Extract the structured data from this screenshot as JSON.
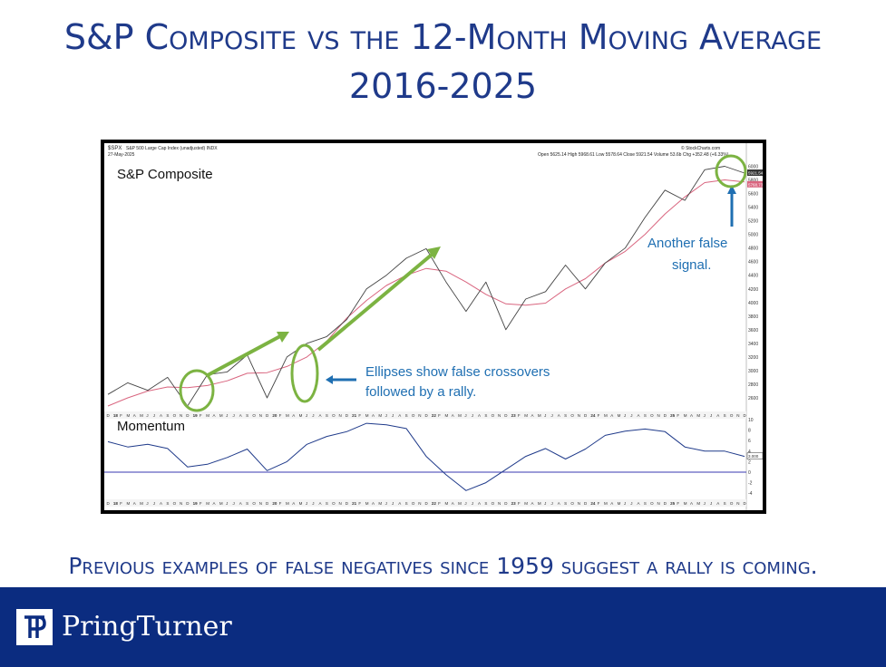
{
  "title_line1": "S&P Composite vs the 12-Month Moving Average",
  "title_line2": "2016-2025",
  "caption": "Previous examples of false negatives since 1959 suggest a rally is coming.",
  "brand": {
    "name": "PringTurner",
    "color": "#0b2c80"
  },
  "colors": {
    "price": "#444444",
    "ma": "#d9657f",
    "momentum": "#1f3a8a",
    "arrow": "#7cb342",
    "callout": "#1f6fb2",
    "zero": "#3a3ab0"
  },
  "chart_header": {
    "symbol": "$SPX",
    "name": "S&P 500 Large Cap Index (unadjusted) INDX",
    "date": "27-May-2025",
    "ohlc": "Open 5625.14  High 5968.61  Low 5578.64  Close 5921.54  Volume 53.6b  Chg +352.48 (+6.33%)",
    "source": "© StockCharts.com",
    "price_label": "5921.54",
    "ma_label": "5768.73",
    "mom_label": "3.000"
  },
  "panel_labels": {
    "price": "S&P Composite",
    "momentum": "Momentum"
  },
  "annotations": {
    "ellipses_line1": "Ellipses show false crossovers",
    "ellipses_line2": "followed by a rally.",
    "false1": "Another false",
    "false2": "signal."
  },
  "axis": {
    "price_ticks": [
      "6000",
      "5800",
      "5600",
      "5400",
      "5200",
      "5000",
      "4800",
      "4600",
      "4400",
      "4200",
      "4000",
      "3800",
      "3600",
      "3400",
      "3200",
      "3000",
      "2800",
      "2600"
    ],
    "mom_ticks": [
      "10",
      "8",
      "6",
      "4",
      "2",
      "0",
      "-2",
      "-4"
    ],
    "month_letters": [
      "F",
      "M",
      "A",
      "M",
      "J",
      "J",
      "A",
      "S",
      "O",
      "N",
      "D"
    ],
    "year_labels": [
      "18",
      "19",
      "20",
      "21",
      "22",
      "23",
      "24",
      "25"
    ]
  },
  "chart_data": [
    {
      "type": "line",
      "title": "S&P Composite",
      "ylim": [
        2400,
        6100
      ],
      "x_months": [
        0,
        3,
        6,
        9,
        12,
        15,
        18,
        21,
        24,
        27,
        30,
        33,
        36,
        39,
        42,
        45,
        48,
        51,
        54,
        57,
        60,
        63,
        66,
        69,
        72,
        75,
        78,
        81,
        84,
        87,
        90,
        93,
        96
      ],
      "series": [
        {
          "name": "S&P Composite",
          "values": [
            2650,
            2820,
            2710,
            2900,
            2480,
            2940,
            2980,
            3230,
            2600,
            3200,
            3400,
            3500,
            3750,
            4200,
            4400,
            4650,
            4790,
            4300,
            3870,
            4300,
            3600,
            4050,
            4160,
            4550,
            4200,
            4580,
            4800,
            5250,
            5650,
            5500,
            5950,
            6000,
            5900
          ]
        },
        {
          "name": "12-Month Moving Average",
          "values": [
            2480,
            2600,
            2700,
            2760,
            2750,
            2780,
            2850,
            2960,
            2970,
            3060,
            3200,
            3430,
            3770,
            4030,
            4250,
            4400,
            4500,
            4460,
            4300,
            4120,
            3980,
            3960,
            3990,
            4200,
            4350,
            4580,
            4750,
            5000,
            5300,
            5550,
            5760,
            5800,
            5770
          ]
        }
      ],
      "annotations": [
        "Ellipses show false crossovers followed by a rally.",
        "Another false signal."
      ]
    },
    {
      "type": "line",
      "title": "Momentum",
      "ylim": [
        -5,
        10
      ],
      "x_months": [
        0,
        3,
        6,
        9,
        12,
        15,
        18,
        21,
        24,
        27,
        30,
        33,
        36,
        39,
        42,
        45,
        48,
        51,
        54,
        57,
        60,
        63,
        66,
        69,
        72,
        75,
        78,
        81,
        84,
        87,
        90,
        93,
        96
      ],
      "series": [
        {
          "name": "Momentum",
          "values": [
            5.8,
            4.8,
            5.3,
            4.5,
            1.0,
            1.5,
            2.8,
            4.4,
            0.3,
            2.0,
            5.3,
            6.8,
            7.7,
            9.3,
            9.0,
            8.3,
            3.0,
            -0.5,
            -3.5,
            -2.0,
            0.5,
            3.0,
            4.5,
            2.5,
            4.4,
            7.0,
            7.8,
            8.2,
            7.7,
            4.8,
            4.0,
            4.0,
            3.0
          ]
        }
      ]
    }
  ]
}
